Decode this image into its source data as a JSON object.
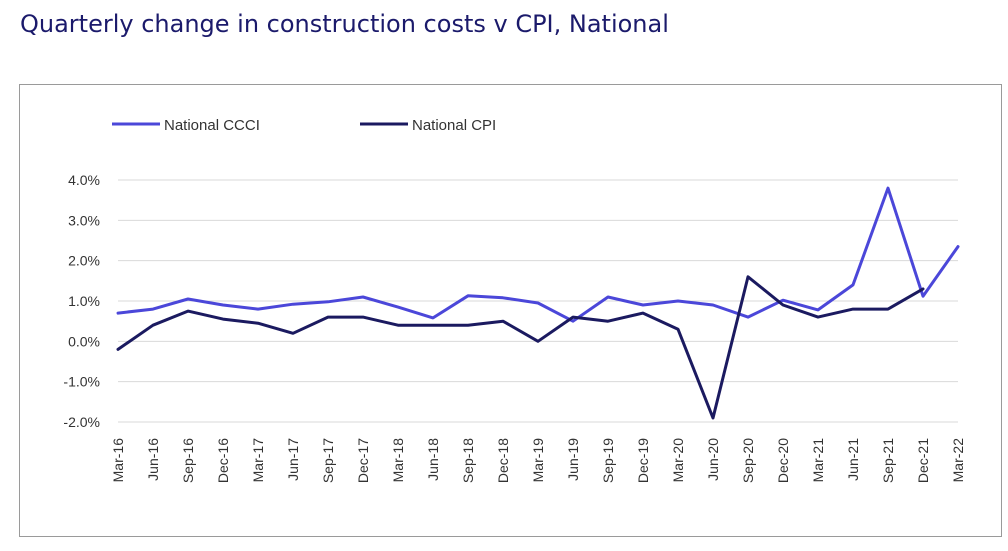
{
  "title": "Quarterly change in construction costs v CPI, National",
  "colors": {
    "cccci": "#4b47d9",
    "cpi": "#1b1a60",
    "grid": "#d9d9d9",
    "title": "#1b1a6b"
  },
  "chart_data": {
    "type": "line",
    "title": "Quarterly change in construction costs v CPI, National",
    "xlabel": "",
    "ylabel": "",
    "ylim": [
      -2.0,
      4.0
    ],
    "yticks": [
      4.0,
      3.0,
      2.0,
      1.0,
      0.0,
      -1.0,
      -2.0
    ],
    "ytick_labels": [
      "4.0%",
      "3.0%",
      "2.0%",
      "1.0%",
      "0.0%",
      "-1.0%",
      "-2.0%"
    ],
    "grid": true,
    "legend": "top-left",
    "categories": [
      "Mar-16",
      "Jun-16",
      "Sep-16",
      "Dec-16",
      "Mar-17",
      "Jun-17",
      "Sep-17",
      "Dec-17",
      "Mar-18",
      "Jun-18",
      "Sep-18",
      "Dec-18",
      "Mar-19",
      "Jun-19",
      "Sep-19",
      "Dec-19",
      "Mar-20",
      "Jun-20",
      "Sep-20",
      "Dec-20",
      "Mar-21",
      "Jun-21",
      "Sep-21",
      "Dec-21",
      "Mar-22"
    ],
    "series": [
      {
        "name": "National CCCI",
        "values": [
          0.7,
          0.8,
          1.05,
          0.9,
          0.8,
          0.92,
          0.98,
          1.1,
          0.85,
          0.58,
          1.13,
          1.08,
          0.95,
          0.5,
          1.1,
          0.9,
          1.0,
          0.9,
          0.6,
          1.02,
          0.78,
          1.4,
          3.8,
          1.12,
          2.35
        ]
      },
      {
        "name": "National CPI",
        "values": [
          -0.2,
          0.4,
          0.75,
          0.55,
          0.45,
          0.2,
          0.6,
          0.6,
          0.4,
          0.4,
          0.4,
          0.5,
          0.0,
          0.6,
          0.5,
          0.7,
          0.3,
          -1.9,
          1.6,
          0.9,
          0.6,
          0.8,
          0.8,
          1.3,
          null
        ]
      }
    ]
  }
}
